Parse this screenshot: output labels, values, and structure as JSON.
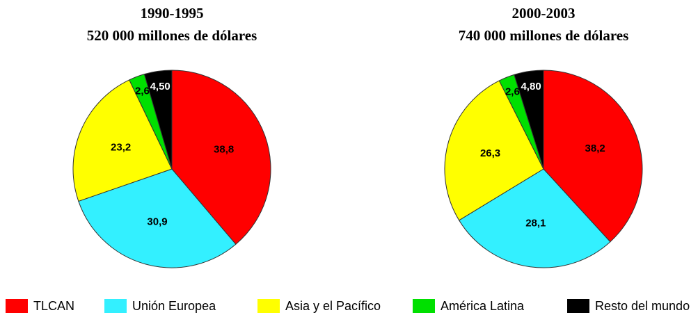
{
  "chart_data": [
    {
      "type": "pie",
      "title": "1990-1995",
      "subtitle": "520 000 millones de dólares",
      "categories": [
        "TLCAN",
        "Unión Europea",
        "Asia y el Pacífico",
        "América Latina",
        "Resto del mundo"
      ],
      "values": [
        38.8,
        30.9,
        23.2,
        2.6,
        4.5
      ],
      "value_labels": [
        "38,8",
        "30,9",
        "23,2",
        "2,6",
        "4,50"
      ],
      "colors": [
        "#ff0000",
        "#33f0ff",
        "#ffff00",
        "#00e000",
        "#000000"
      ]
    },
    {
      "type": "pie",
      "title": "2000-2003",
      "subtitle": "740 000 millones de dólares",
      "categories": [
        "TLCAN",
        "Unión Europea",
        "Asia y el Pacífico",
        "América Latina",
        "Resto del mundo"
      ],
      "values": [
        38.2,
        28.1,
        26.3,
        2.6,
        4.8
      ],
      "value_labels": [
        "38,2",
        "28,1",
        "26,3",
        "2,6",
        "4,80"
      ],
      "colors": [
        "#ff0000",
        "#33f0ff",
        "#ffff00",
        "#00e000",
        "#000000"
      ]
    }
  ]
}
